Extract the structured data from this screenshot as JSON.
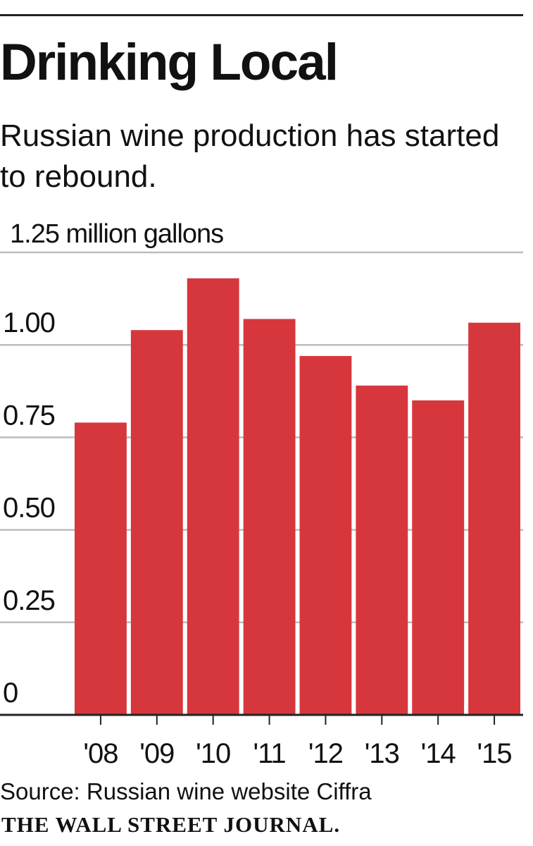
{
  "title": "Drinking Local",
  "subtitle": "Russian wine production has started to rebound.",
  "source": "Source: Russian wine website Ciffra",
  "credit": "THE WALL STREET JOURNAL.",
  "chart_data": {
    "type": "bar",
    "unit_label": "million gallons",
    "categories": [
      "'08",
      "'09",
      "'10",
      "'11",
      "'12",
      "'13",
      "'14",
      "'15"
    ],
    "values": [
      0.79,
      1.04,
      1.18,
      1.07,
      0.97,
      0.89,
      0.85,
      1.06
    ],
    "ylim": [
      0,
      1.25
    ],
    "yticks": [
      0,
      0.25,
      0.5,
      0.75,
      1.0,
      1.25
    ],
    "ytick_labels": [
      "0",
      "0.25",
      "0.50",
      "0.75",
      "1.00",
      "1.25"
    ],
    "top_tick_label": "1.25 million gallons",
    "grid": true,
    "bar_color": "#d6373c",
    "grid_color": "#bcbcbc",
    "axis_color": "#222222"
  }
}
